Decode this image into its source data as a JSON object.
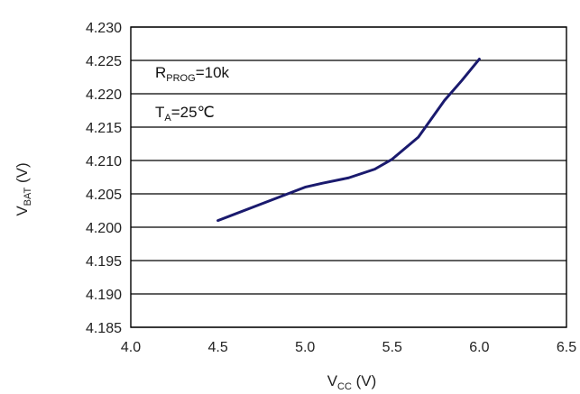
{
  "chart_data": {
    "type": "line",
    "xlabel": {
      "main": "V",
      "sub": "CC",
      "unit": " (V)"
    },
    "ylabel": {
      "main": "V",
      "sub": "BAT",
      "unit": " (V)"
    },
    "xlim": [
      4.0,
      6.5
    ],
    "ylim": [
      4.185,
      4.23
    ],
    "x_ticks": [
      "4.0",
      "4.5",
      "5.0",
      "5.5",
      "6.0",
      "6.5"
    ],
    "y_ticks": [
      "4.185",
      "4.190",
      "4.195",
      "4.200",
      "4.205",
      "4.210",
      "4.215",
      "4.220",
      "4.225",
      "4.230"
    ],
    "grid": "horizontal",
    "annotations": [
      {
        "main": "R",
        "sub": "PROG",
        "rest": "=10k"
      },
      {
        "main": "T",
        "sub": "A",
        "rest": "=25℃"
      }
    ],
    "series": [
      {
        "color": "#1a1a6e",
        "x": [
          4.5,
          4.75,
          5.0,
          5.1,
          5.25,
          5.4,
          5.5,
          5.65,
          5.8,
          5.9,
          6.0
        ],
        "y": [
          4.201,
          4.2035,
          4.206,
          4.2066,
          4.2074,
          4.2087,
          4.2102,
          4.2135,
          4.219,
          4.222,
          4.2252
        ]
      }
    ]
  }
}
